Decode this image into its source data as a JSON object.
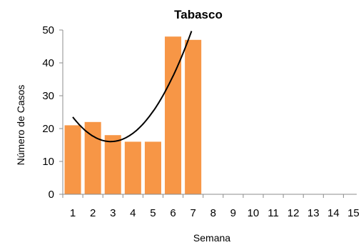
{
  "chart_data": {
    "type": "bar",
    "title": "Tabasco",
    "xlabel": "Semana",
    "ylabel": "Número de Casos",
    "categories": [
      "1",
      "2",
      "3",
      "4",
      "5",
      "6",
      "7",
      "8",
      "9",
      "10",
      "11",
      "12",
      "13",
      "14",
      "15"
    ],
    "series": [
      {
        "values": [
          21,
          22,
          18,
          16,
          16,
          48,
          47,
          null,
          null,
          null,
          null,
          null,
          null,
          null,
          null
        ]
      }
    ],
    "trendline": {
      "type": "polynomial",
      "order": 2,
      "fitted_range": [
        1,
        7
      ]
    },
    "ylim": [
      0,
      50
    ],
    "yticks": [
      0,
      10,
      20,
      30,
      40,
      50
    ],
    "grid": false,
    "legend": "none",
    "colors": {
      "bar": "#F79646",
      "trendline": "#000000",
      "axis": "#8C8C8C"
    }
  }
}
